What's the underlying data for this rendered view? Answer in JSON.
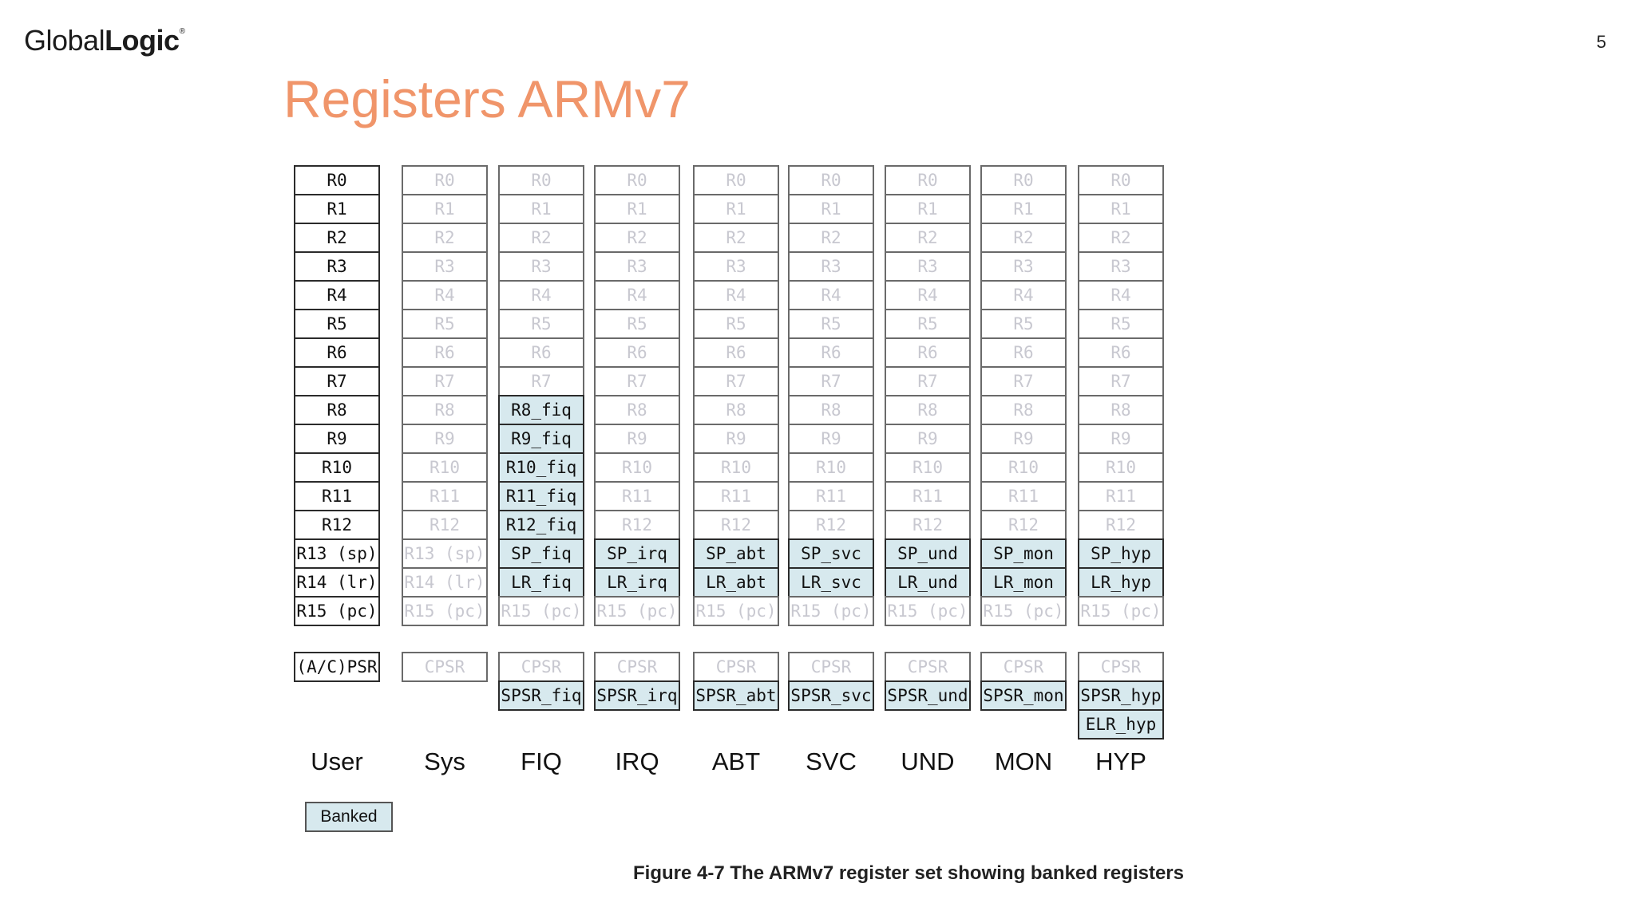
{
  "slide": {
    "logo_regular": "Global",
    "logo_bold": "Logic",
    "logo_mark": "®",
    "page_number": "5",
    "title": "Registers ARMv7"
  },
  "diagram": {
    "caption": "Figure 4-7 The ARMv7 register set showing banked registers",
    "legend_label": "Banked",
    "columns": [
      {
        "mode": "User",
        "registers": [
          {
            "label": "R0",
            "state": "normal"
          },
          {
            "label": "R1",
            "state": "normal"
          },
          {
            "label": "R2",
            "state": "normal"
          },
          {
            "label": "R3",
            "state": "normal"
          },
          {
            "label": "R4",
            "state": "normal"
          },
          {
            "label": "R5",
            "state": "normal"
          },
          {
            "label": "R6",
            "state": "normal"
          },
          {
            "label": "R7",
            "state": "normal"
          },
          {
            "label": "R8",
            "state": "normal"
          },
          {
            "label": "R9",
            "state": "normal"
          },
          {
            "label": "R10",
            "state": "normal"
          },
          {
            "label": "R11",
            "state": "normal"
          },
          {
            "label": "R12",
            "state": "normal"
          },
          {
            "label": "R13 (sp)",
            "state": "normal"
          },
          {
            "label": "R14 (lr)",
            "state": "normal"
          },
          {
            "label": "R15 (pc)",
            "state": "normal"
          }
        ],
        "status": [
          {
            "label": "(A/C)PSR",
            "state": "normal"
          }
        ]
      },
      {
        "mode": "Sys",
        "registers": [
          {
            "label": "R0",
            "state": "ghost"
          },
          {
            "label": "R1",
            "state": "ghost"
          },
          {
            "label": "R2",
            "state": "ghost"
          },
          {
            "label": "R3",
            "state": "ghost"
          },
          {
            "label": "R4",
            "state": "ghost"
          },
          {
            "label": "R5",
            "state": "ghost"
          },
          {
            "label": "R6",
            "state": "ghost"
          },
          {
            "label": "R7",
            "state": "ghost"
          },
          {
            "label": "R8",
            "state": "ghost"
          },
          {
            "label": "R9",
            "state": "ghost"
          },
          {
            "label": "R10",
            "state": "ghost"
          },
          {
            "label": "R11",
            "state": "ghost"
          },
          {
            "label": "R12",
            "state": "ghost"
          },
          {
            "label": "R13 (sp)",
            "state": "ghost"
          },
          {
            "label": "R14 (lr)",
            "state": "ghost"
          },
          {
            "label": "R15 (pc)",
            "state": "ghost"
          }
        ],
        "status": [
          {
            "label": "CPSR",
            "state": "ghost"
          }
        ]
      },
      {
        "mode": "FIQ",
        "registers": [
          {
            "label": "R0",
            "state": "ghost"
          },
          {
            "label": "R1",
            "state": "ghost"
          },
          {
            "label": "R2",
            "state": "ghost"
          },
          {
            "label": "R3",
            "state": "ghost"
          },
          {
            "label": "R4",
            "state": "ghost"
          },
          {
            "label": "R5",
            "state": "ghost"
          },
          {
            "label": "R6",
            "state": "ghost"
          },
          {
            "label": "R7",
            "state": "ghost"
          },
          {
            "label": "R8_fiq",
            "state": "banked"
          },
          {
            "label": "R9_fiq",
            "state": "banked"
          },
          {
            "label": "R10_fiq",
            "state": "banked"
          },
          {
            "label": "R11_fiq",
            "state": "banked"
          },
          {
            "label": "R12_fiq",
            "state": "banked"
          },
          {
            "label": "SP_fiq",
            "state": "banked"
          },
          {
            "label": "LR_fiq",
            "state": "banked"
          },
          {
            "label": "R15 (pc)",
            "state": "ghost"
          }
        ],
        "status": [
          {
            "label": "CPSR",
            "state": "ghost"
          },
          {
            "label": "SPSR_fiq",
            "state": "banked"
          }
        ]
      },
      {
        "mode": "IRQ",
        "registers": [
          {
            "label": "R0",
            "state": "ghost"
          },
          {
            "label": "R1",
            "state": "ghost"
          },
          {
            "label": "R2",
            "state": "ghost"
          },
          {
            "label": "R3",
            "state": "ghost"
          },
          {
            "label": "R4",
            "state": "ghost"
          },
          {
            "label": "R5",
            "state": "ghost"
          },
          {
            "label": "R6",
            "state": "ghost"
          },
          {
            "label": "R7",
            "state": "ghost"
          },
          {
            "label": "R8",
            "state": "ghost"
          },
          {
            "label": "R9",
            "state": "ghost"
          },
          {
            "label": "R10",
            "state": "ghost"
          },
          {
            "label": "R11",
            "state": "ghost"
          },
          {
            "label": "R12",
            "state": "ghost"
          },
          {
            "label": "SP_irq",
            "state": "banked"
          },
          {
            "label": "LR_irq",
            "state": "banked"
          },
          {
            "label": "R15 (pc)",
            "state": "ghost"
          }
        ],
        "status": [
          {
            "label": "CPSR",
            "state": "ghost"
          },
          {
            "label": "SPSR_irq",
            "state": "banked"
          }
        ]
      },
      {
        "mode": "ABT",
        "registers": [
          {
            "label": "R0",
            "state": "ghost"
          },
          {
            "label": "R1",
            "state": "ghost"
          },
          {
            "label": "R2",
            "state": "ghost"
          },
          {
            "label": "R3",
            "state": "ghost"
          },
          {
            "label": "R4",
            "state": "ghost"
          },
          {
            "label": "R5",
            "state": "ghost"
          },
          {
            "label": "R6",
            "state": "ghost"
          },
          {
            "label": "R7",
            "state": "ghost"
          },
          {
            "label": "R8",
            "state": "ghost"
          },
          {
            "label": "R9",
            "state": "ghost"
          },
          {
            "label": "R10",
            "state": "ghost"
          },
          {
            "label": "R11",
            "state": "ghost"
          },
          {
            "label": "R12",
            "state": "ghost"
          },
          {
            "label": "SP_abt",
            "state": "banked"
          },
          {
            "label": "LR_abt",
            "state": "banked"
          },
          {
            "label": "R15 (pc)",
            "state": "ghost"
          }
        ],
        "status": [
          {
            "label": "CPSR",
            "state": "ghost"
          },
          {
            "label": "SPSR_abt",
            "state": "banked"
          }
        ]
      },
      {
        "mode": "SVC",
        "registers": [
          {
            "label": "R0",
            "state": "ghost"
          },
          {
            "label": "R1",
            "state": "ghost"
          },
          {
            "label": "R2",
            "state": "ghost"
          },
          {
            "label": "R3",
            "state": "ghost"
          },
          {
            "label": "R4",
            "state": "ghost"
          },
          {
            "label": "R5",
            "state": "ghost"
          },
          {
            "label": "R6",
            "state": "ghost"
          },
          {
            "label": "R7",
            "state": "ghost"
          },
          {
            "label": "R8",
            "state": "ghost"
          },
          {
            "label": "R9",
            "state": "ghost"
          },
          {
            "label": "R10",
            "state": "ghost"
          },
          {
            "label": "R11",
            "state": "ghost"
          },
          {
            "label": "R12",
            "state": "ghost"
          },
          {
            "label": "SP_svc",
            "state": "banked"
          },
          {
            "label": "LR_svc",
            "state": "banked"
          },
          {
            "label": "R15 (pc)",
            "state": "ghost"
          }
        ],
        "status": [
          {
            "label": "CPSR",
            "state": "ghost"
          },
          {
            "label": "SPSR_svc",
            "state": "banked"
          }
        ]
      },
      {
        "mode": "UND",
        "registers": [
          {
            "label": "R0",
            "state": "ghost"
          },
          {
            "label": "R1",
            "state": "ghost"
          },
          {
            "label": "R2",
            "state": "ghost"
          },
          {
            "label": "R3",
            "state": "ghost"
          },
          {
            "label": "R4",
            "state": "ghost"
          },
          {
            "label": "R5",
            "state": "ghost"
          },
          {
            "label": "R6",
            "state": "ghost"
          },
          {
            "label": "R7",
            "state": "ghost"
          },
          {
            "label": "R8",
            "state": "ghost"
          },
          {
            "label": "R9",
            "state": "ghost"
          },
          {
            "label": "R10",
            "state": "ghost"
          },
          {
            "label": "R11",
            "state": "ghost"
          },
          {
            "label": "R12",
            "state": "ghost"
          },
          {
            "label": "SP_und",
            "state": "banked"
          },
          {
            "label": "LR_und",
            "state": "banked"
          },
          {
            "label": "R15 (pc)",
            "state": "ghost"
          }
        ],
        "status": [
          {
            "label": "CPSR",
            "state": "ghost"
          },
          {
            "label": "SPSR_und",
            "state": "banked"
          }
        ]
      },
      {
        "mode": "MON",
        "registers": [
          {
            "label": "R0",
            "state": "ghost"
          },
          {
            "label": "R1",
            "state": "ghost"
          },
          {
            "label": "R2",
            "state": "ghost"
          },
          {
            "label": "R3",
            "state": "ghost"
          },
          {
            "label": "R4",
            "state": "ghost"
          },
          {
            "label": "R5",
            "state": "ghost"
          },
          {
            "label": "R6",
            "state": "ghost"
          },
          {
            "label": "R7",
            "state": "ghost"
          },
          {
            "label": "R8",
            "state": "ghost"
          },
          {
            "label": "R9",
            "state": "ghost"
          },
          {
            "label": "R10",
            "state": "ghost"
          },
          {
            "label": "R11",
            "state": "ghost"
          },
          {
            "label": "R12",
            "state": "ghost"
          },
          {
            "label": "SP_mon",
            "state": "banked"
          },
          {
            "label": "LR_mon",
            "state": "banked"
          },
          {
            "label": "R15 (pc)",
            "state": "ghost"
          }
        ],
        "status": [
          {
            "label": "CPSR",
            "state": "ghost"
          },
          {
            "label": "SPSR_mon",
            "state": "banked"
          }
        ]
      },
      {
        "mode": "HYP",
        "registers": [
          {
            "label": "R0",
            "state": "ghost"
          },
          {
            "label": "R1",
            "state": "ghost"
          },
          {
            "label": "R2",
            "state": "ghost"
          },
          {
            "label": "R3",
            "state": "ghost"
          },
          {
            "label": "R4",
            "state": "ghost"
          },
          {
            "label": "R5",
            "state": "ghost"
          },
          {
            "label": "R6",
            "state": "ghost"
          },
          {
            "label": "R7",
            "state": "ghost"
          },
          {
            "label": "R8",
            "state": "ghost"
          },
          {
            "label": "R9",
            "state": "ghost"
          },
          {
            "label": "R10",
            "state": "ghost"
          },
          {
            "label": "R11",
            "state": "ghost"
          },
          {
            "label": "R12",
            "state": "ghost"
          },
          {
            "label": "SP_hyp",
            "state": "banked"
          },
          {
            "label": "LR_hyp",
            "state": "banked"
          },
          {
            "label": "R15 (pc)",
            "state": "ghost"
          }
        ],
        "status": [
          {
            "label": "CPSR",
            "state": "ghost"
          },
          {
            "label": "SPSR_hyp",
            "state": "banked"
          },
          {
            "label": "ELR_hyp",
            "state": "banked"
          }
        ]
      }
    ]
  }
}
